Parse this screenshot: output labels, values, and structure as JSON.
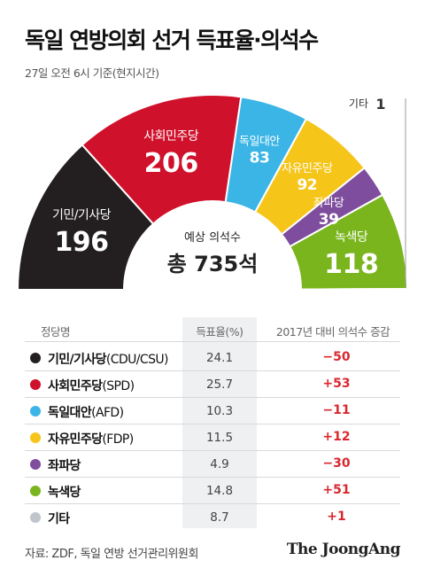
{
  "title": "독일 연방의회 선거 득표율·의석수",
  "subtitle": "27일 오전 6시 기준(현지시간)",
  "chart_data": {
    "type": "pie",
    "subtype": "half-donut",
    "center_label": "예상 의석수",
    "center_value": "총 735석",
    "total_seats": 735,
    "segments": [
      {
        "name": "기민/기사당",
        "seats": 196,
        "color": "#231f20"
      },
      {
        "name": "사회민주당",
        "seats": 206,
        "color": "#d0112b"
      },
      {
        "name": "독일대안",
        "seats": 83,
        "color": "#3ab5e6"
      },
      {
        "name": "자유민주당",
        "seats": 92,
        "color": "#f6c51a"
      },
      {
        "name": "좌파당",
        "seats": 39,
        "color": "#7e4d9d"
      },
      {
        "name": "녹색당",
        "seats": 118,
        "color": "#7ab51d"
      },
      {
        "name": "기타",
        "seats": 1,
        "color": "#bfc5cb"
      }
    ]
  },
  "table": {
    "headers": [
      "정당명",
      "득표율(%)",
      "2017년 대비 의석수 증감"
    ],
    "rows": [
      {
        "name": "기민/기사당",
        "abbr": "(CDU/CSU)",
        "share": "24.1",
        "change": "−50",
        "color": "#231f20"
      },
      {
        "name": "사회민주당",
        "abbr": "(SPD)",
        "share": "25.7",
        "change": "+53",
        "color": "#d0112b"
      },
      {
        "name": "독일대안",
        "abbr": "(AFD)",
        "share": "10.3",
        "change": "−11",
        "color": "#3ab5e6"
      },
      {
        "name": "자유민주당",
        "abbr": "(FDP)",
        "share": "11.5",
        "change": "+12",
        "color": "#f6c51a"
      },
      {
        "name": "좌파당",
        "abbr": "",
        "share": "4.9",
        "change": "−30",
        "color": "#7e4d9d"
      },
      {
        "name": "녹색당",
        "abbr": "",
        "share": "14.8",
        "change": "+51",
        "color": "#7ab51d"
      },
      {
        "name": "기타",
        "abbr": "",
        "share": "8.7",
        "change": "+1",
        "color": "#bfc5cb"
      }
    ]
  },
  "source": "자료: ZDF, 독일 연방 선거관리위원회",
  "brand": "The JoongAng"
}
